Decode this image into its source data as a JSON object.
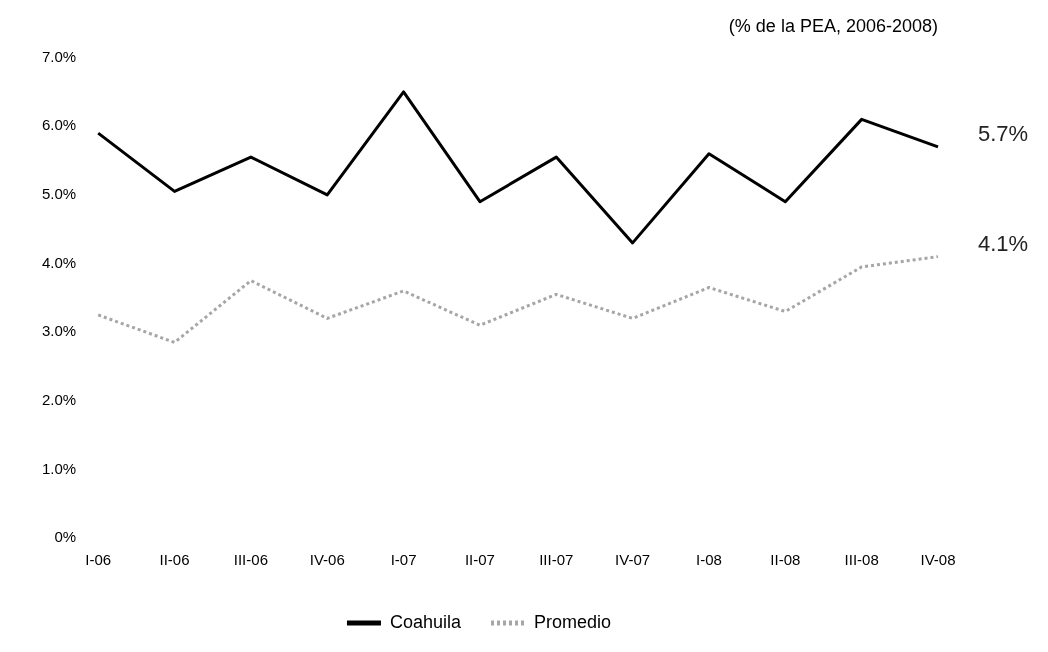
{
  "chart_data": {
    "type": "line",
    "title": "(% de la PEA, 2006-2008)",
    "categories": [
      "I-06",
      "II-06",
      "III-06",
      "IV-06",
      "I-07",
      "II-07",
      "III-07",
      "IV-07",
      "I-08",
      "II-08",
      "III-08",
      "IV-08"
    ],
    "series": [
      {
        "name": "Coahuila",
        "color": "#000000",
        "line_style": "solid",
        "values": [
          5.9,
          5.05,
          5.55,
          5.0,
          6.5,
          4.9,
          5.55,
          4.3,
          5.6,
          4.9,
          6.1,
          5.7
        ]
      },
      {
        "name": "Promedio",
        "color": "#a6a6a6",
        "line_style": "dotted",
        "values": [
          3.25,
          2.85,
          3.75,
          3.2,
          3.6,
          3.1,
          3.55,
          3.2,
          3.65,
          3.3,
          3.95,
          4.1
        ]
      }
    ],
    "ylim": [
      0,
      7
    ],
    "yticks": [
      {
        "value": 0,
        "label": "0%"
      },
      {
        "value": 1,
        "label": "1.0%"
      },
      {
        "value": 2,
        "label": "2.0%"
      },
      {
        "value": 3,
        "label": "3.0%"
      },
      {
        "value": 4,
        "label": "4.0%"
      },
      {
        "value": 5,
        "label": "5.0%"
      },
      {
        "value": 6,
        "label": "6.0%"
      },
      {
        "value": 7,
        "label": "7.0%"
      }
    ],
    "annotations": [
      {
        "text": "5.7%",
        "x": "IV-08",
        "y": 5.7
      },
      {
        "text": "4.1%",
        "x": "IV-08",
        "y": 4.1
      }
    ],
    "grid": false,
    "legend": "bottom",
    "marker": "none"
  }
}
